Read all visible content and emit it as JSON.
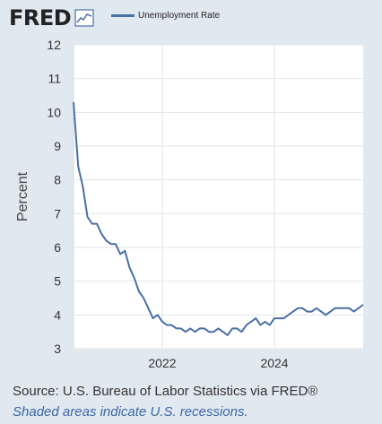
{
  "brand": {
    "logo_text": "FRED"
  },
  "legend": {
    "label": "Unemployment Rate",
    "color": "#4a6fa5"
  },
  "footer": {
    "source": "Source: U.S. Bureau of Labor Statistics via FRED®",
    "note": "Shaded areas indicate U.S. recessions."
  },
  "chart_data": {
    "type": "line",
    "ylabel": "Percent",
    "xlabel": "",
    "ylim": [
      3,
      12
    ],
    "yticks": [
      3,
      4,
      5,
      6,
      7,
      8,
      9,
      10,
      11,
      12
    ],
    "xlim": [
      "2020-06",
      "2025-08"
    ],
    "xticks": [
      {
        "value": "2022-01",
        "label": "2022"
      },
      {
        "value": "2024-01",
        "label": "2024"
      }
    ],
    "grid": true,
    "series": [
      {
        "name": "Unemployment Rate",
        "color": "#4a6fa5",
        "x": [
          "2020-06",
          "2020-07",
          "2020-08",
          "2020-09",
          "2020-10",
          "2020-11",
          "2020-12",
          "2021-01",
          "2021-02",
          "2021-03",
          "2021-04",
          "2021-05",
          "2021-06",
          "2021-07",
          "2021-08",
          "2021-09",
          "2021-10",
          "2021-11",
          "2021-12",
          "2022-01",
          "2022-02",
          "2022-03",
          "2022-04",
          "2022-05",
          "2022-06",
          "2022-07",
          "2022-08",
          "2022-09",
          "2022-10",
          "2022-11",
          "2022-12",
          "2023-01",
          "2023-02",
          "2023-03",
          "2023-04",
          "2023-05",
          "2023-06",
          "2023-07",
          "2023-08",
          "2023-09",
          "2023-10",
          "2023-11",
          "2023-12",
          "2024-01",
          "2024-02",
          "2024-03",
          "2024-04",
          "2024-05",
          "2024-06",
          "2024-07",
          "2024-08",
          "2024-09",
          "2024-10",
          "2024-11",
          "2024-12",
          "2025-01",
          "2025-02",
          "2025-03",
          "2025-04",
          "2025-05",
          "2025-06",
          "2025-07",
          "2025-08"
        ],
        "values": [
          10.3,
          8.4,
          7.8,
          6.9,
          6.7,
          6.7,
          6.4,
          6.2,
          6.1,
          6.1,
          5.8,
          5.9,
          5.4,
          5.1,
          4.7,
          4.5,
          4.2,
          3.9,
          4.0,
          3.8,
          3.7,
          3.7,
          3.6,
          3.6,
          3.5,
          3.6,
          3.5,
          3.6,
          3.6,
          3.5,
          3.5,
          3.6,
          3.5,
          3.4,
          3.6,
          3.6,
          3.5,
          3.7,
          3.8,
          3.9,
          3.7,
          3.8,
          3.7,
          3.9,
          3.9,
          3.9,
          4.0,
          4.1,
          4.2,
          4.2,
          4.1,
          4.1,
          4.2,
          4.1,
          4.0,
          4.1,
          4.2,
          4.2,
          4.2,
          4.2,
          4.1,
          4.2,
          4.3
        ]
      }
    ]
  }
}
